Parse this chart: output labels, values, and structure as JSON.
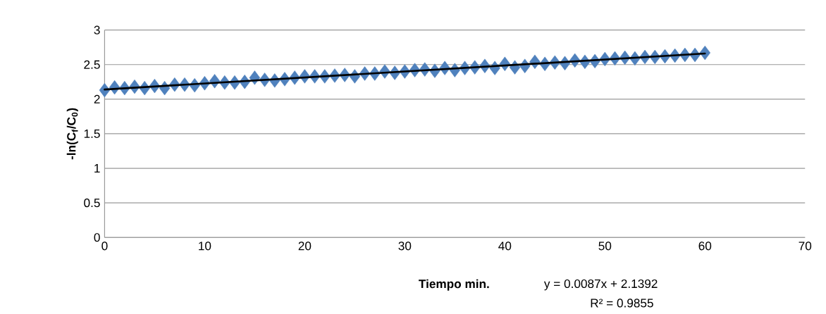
{
  "chart_data": {
    "type": "scatter",
    "xlabel": "Tiempo min.",
    "ylabel": "-ln(C$_{f}$/C$_{0}$)",
    "x": [
      0,
      1,
      2,
      3,
      4,
      5,
      6,
      7,
      8,
      9,
      10,
      11,
      12,
      13,
      14,
      15,
      16,
      17,
      18,
      19,
      20,
      21,
      22,
      23,
      24,
      25,
      26,
      27,
      28,
      29,
      30,
      31,
      32,
      33,
      34,
      35,
      36,
      37,
      38,
      39,
      40,
      41,
      42,
      43,
      44,
      45,
      46,
      47,
      48,
      49,
      50,
      51,
      52,
      53,
      54,
      55,
      56,
      57,
      58,
      59,
      60
    ],
    "series": [
      {
        "color": "#4f81bd",
        "marker": "diamond",
        "values": [
          2.13,
          2.17,
          2.16,
          2.18,
          2.16,
          2.19,
          2.16,
          2.21,
          2.21,
          2.2,
          2.23,
          2.26,
          2.24,
          2.24,
          2.25,
          2.31,
          2.28,
          2.27,
          2.29,
          2.31,
          2.33,
          2.33,
          2.33,
          2.34,
          2.35,
          2.33,
          2.37,
          2.37,
          2.4,
          2.38,
          2.4,
          2.42,
          2.43,
          2.41,
          2.45,
          2.42,
          2.45,
          2.46,
          2.48,
          2.45,
          2.51,
          2.46,
          2.48,
          2.54,
          2.51,
          2.53,
          2.52,
          2.56,
          2.54,
          2.55,
          2.58,
          2.59,
          2.6,
          2.59,
          2.61,
          2.61,
          2.62,
          2.63,
          2.64,
          2.64,
          2.67
        ]
      },
      {
        "type": "line",
        "color": "#000000",
        "marker": "none",
        "x": [
          0,
          60
        ],
        "values": [
          2.14,
          2.66
        ]
      }
    ],
    "xlim": [
      0,
      70
    ],
    "xticks": [
      0,
      10,
      20,
      30,
      40,
      50,
      60,
      70
    ],
    "ylim": [
      0,
      3
    ],
    "yticks": [
      0,
      0.5,
      1,
      1.5,
      2,
      2.5,
      3
    ],
    "grid": "y",
    "annotations": [
      "y = 0.0087x + 2.1392",
      "R² = 0.9855"
    ]
  }
}
